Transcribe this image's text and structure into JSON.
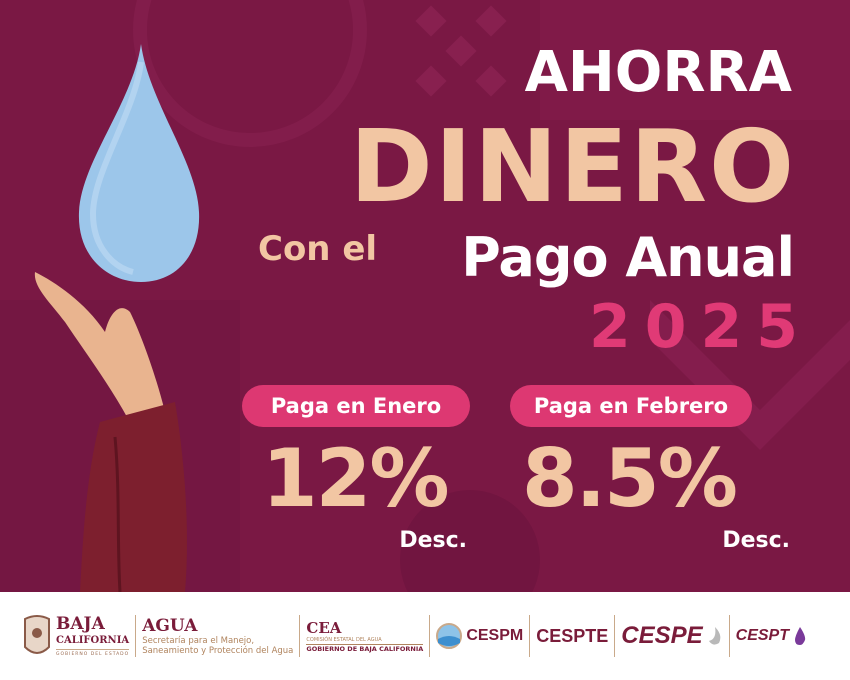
{
  "headline": {
    "line1": "AHORRA",
    "line2": "DINERO",
    "prefix": "Con el",
    "line3": "Pago Anual",
    "year": "2025"
  },
  "offers": [
    {
      "label": "Paga en Enero",
      "discount": "12%",
      "suffix": "Desc."
    },
    {
      "label": "Paga en Febrero",
      "discount": "8.5%",
      "suffix": "Desc."
    }
  ],
  "colors": {
    "background": "#7a1844",
    "accent_beige": "#f2c6a3",
    "accent_pink": "#dd3872",
    "drop": "#9cc6ea"
  },
  "footer": {
    "baja": {
      "line1": "BAJA",
      "line2": "CALIFORNIA",
      "line3": "GOBIERNO DEL ESTADO"
    },
    "agua": {
      "title": "AGUA",
      "line1": "Secretaría para el Manejo,",
      "line2": "Saneamiento y Protección del Agua"
    },
    "cea": {
      "title": "CEA",
      "line1": "COMISIÓN ESTATAL DEL AGUA",
      "line2": "GOBIERNO DE BAJA CALIFORNIA"
    },
    "orgs": [
      "CESPM",
      "CESPTE",
      "CESPE",
      "CESPT"
    ]
  }
}
